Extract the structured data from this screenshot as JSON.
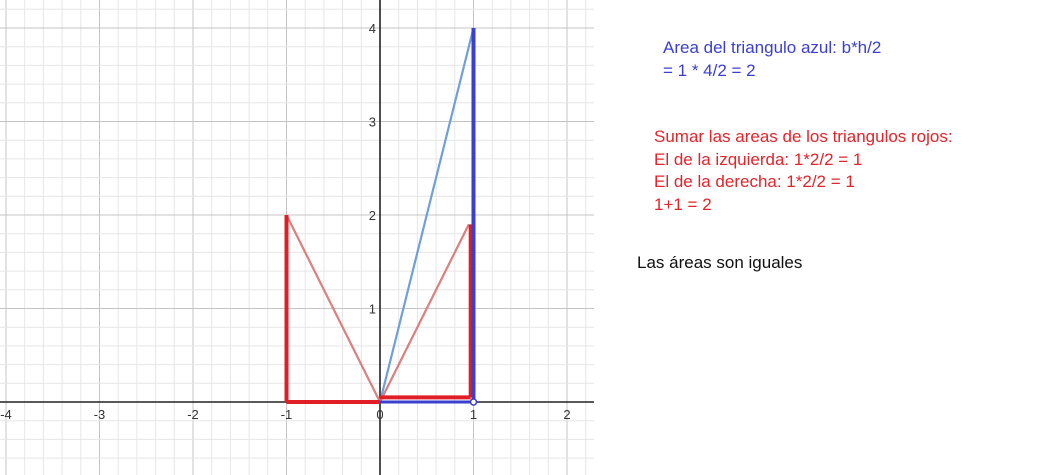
{
  "graph": {
    "x_ticks": [
      {
        "value": -4,
        "label": "-4"
      },
      {
        "value": -3,
        "label": "-3"
      },
      {
        "value": -2,
        "label": "-2"
      },
      {
        "value": -1,
        "label": "-1"
      },
      {
        "value": 0,
        "label": "0"
      },
      {
        "value": 1,
        "label": "1"
      },
      {
        "value": 2,
        "label": "2"
      }
    ],
    "y_ticks": [
      {
        "value": 1,
        "label": "1"
      },
      {
        "value": 2,
        "label": "2"
      },
      {
        "value": 3,
        "label": "3"
      },
      {
        "value": 4,
        "label": "4"
      }
    ],
    "x_range": [
      -4,
      2.25
    ],
    "y_range": [
      -0.75,
      4.3
    ],
    "grid": true,
    "colors": {
      "grid_minor": "#e6e6e6",
      "grid_major": "#c4c4c4",
      "axis": "#222222",
      "blue_thick": "#3a3fcc",
      "blue_thin": "#6f9fd8",
      "red_thick": "#e01e26",
      "red_thin": "#db7f7f"
    },
    "segments": [
      {
        "name": "blue-diagonal-line",
        "from": [
          0,
          0
        ],
        "to": [
          1,
          4
        ],
        "color": "blue_thin",
        "width": 2.2
      },
      {
        "name": "red-left-diagonal-line",
        "from": [
          -1,
          2
        ],
        "to": [
          0,
          0
        ],
        "color": "red_thin",
        "width": 2.2
      },
      {
        "name": "red-right-diagonal-line",
        "from": [
          0,
          0
        ],
        "to": [
          0.95,
          1.9
        ],
        "color": "red_thin",
        "width": 2.2
      },
      {
        "name": "red-left-base-line",
        "from": [
          -1,
          0
        ],
        "to": [
          0,
          0
        ],
        "color": "red_thick",
        "width": 4
      },
      {
        "name": "red-left-height-line",
        "from": [
          -1,
          0
        ],
        "to": [
          -1,
          2
        ],
        "color": "red_thick",
        "width": 4
      },
      {
        "name": "red-right-base-line",
        "from": [
          0,
          0.05
        ],
        "to": [
          0.97,
          0.05
        ],
        "color": "red_thick",
        "width": 4
      },
      {
        "name": "red-right-height-line",
        "from": [
          0.97,
          0.05
        ],
        "to": [
          0.97,
          1.9
        ],
        "color": "red_thick",
        "width": 4
      },
      {
        "name": "blue-height-line",
        "from": [
          1,
          0
        ],
        "to": [
          1,
          4
        ],
        "color": "blue_thick",
        "width": 4
      },
      {
        "name": "blue-base-line",
        "from": [
          0,
          0
        ],
        "to": [
          1,
          0
        ],
        "color": "blue_thick",
        "width": 3
      }
    ]
  },
  "notes": {
    "blue": {
      "color": "#3b3fd1",
      "lines": [
        "Area del triangulo azul: b*h/2",
        "= 1 * 4/2 = 2"
      ]
    },
    "red": {
      "color": "#e0252b",
      "lines": [
        "Sumar las areas de los triangulos rojos:",
        "El de la izquierda: 1*2/2 = 1",
        "El de la derecha: 1*2/2 = 1",
        "1+1  = 2"
      ]
    },
    "conclusion": {
      "color": "#111111",
      "text": "Las áreas son iguales"
    }
  }
}
